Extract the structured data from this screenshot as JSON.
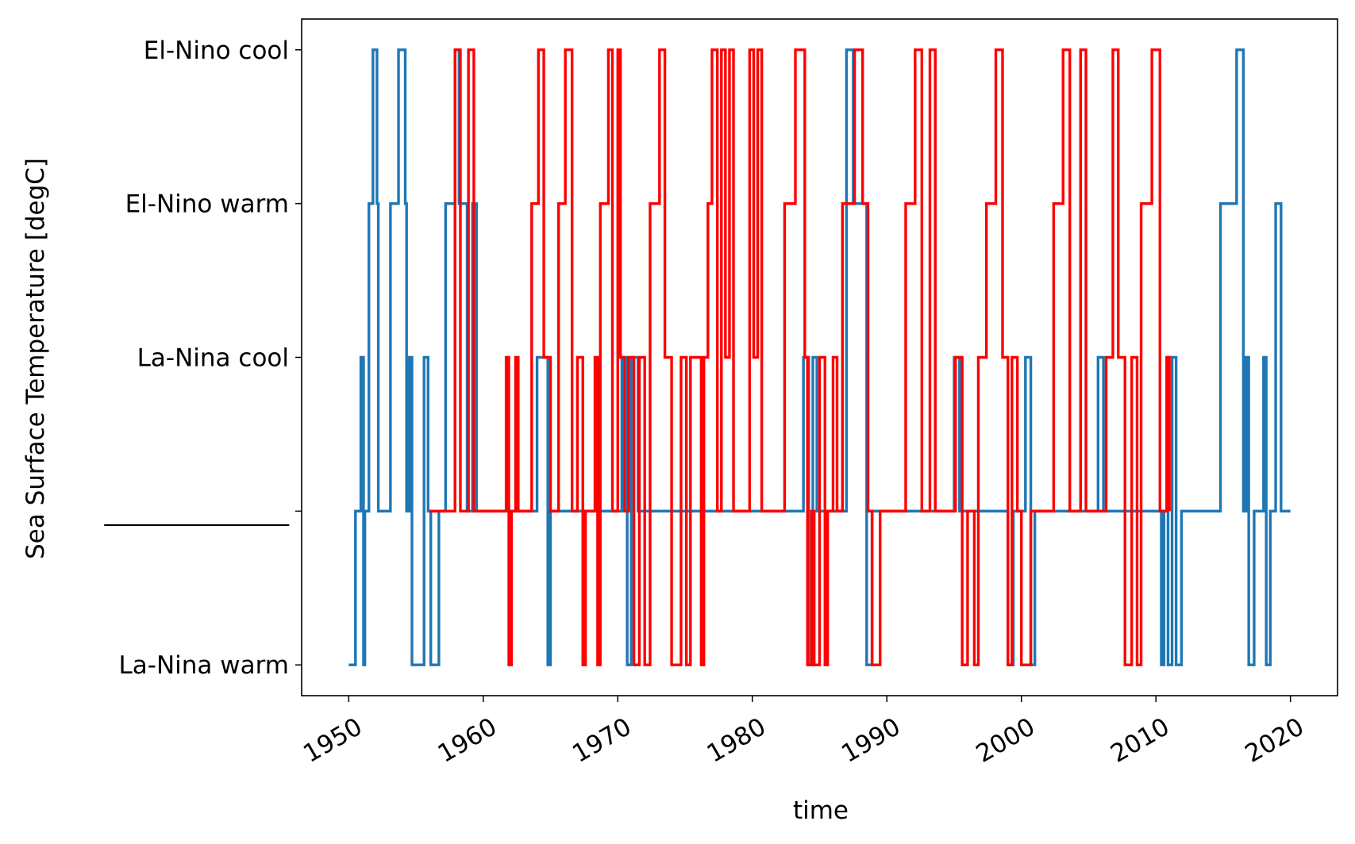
{
  "chart_data": {
    "type": "line",
    "x_label": "time",
    "y_label": "Sea Surface Temperature [degC]",
    "xlim": [
      1946.5,
      2023.5
    ],
    "xticks": [
      1950,
      1960,
      1970,
      1980,
      1990,
      2000,
      2010,
      2020
    ],
    "ylim": [
      -0.2,
      4.2
    ],
    "yticks": [
      {
        "value": 0,
        "label": "La-Nina warm"
      },
      {
        "value": 1,
        "label": "_______________"
      },
      {
        "value": 2,
        "label": "La-Nina cool"
      },
      {
        "value": 3,
        "label": "El-Nino warm"
      },
      {
        "value": 4,
        "label": "El-Nino cool"
      }
    ],
    "series": [
      {
        "color": "#1f77b4",
        "x": [
          1950.0,
          1950.5,
          1950.9,
          1951.1,
          1951.2,
          1951.5,
          1951.8,
          1952.1,
          1952.2,
          1953.1,
          1953.7,
          1954.2,
          1954.3,
          1954.5,
          1954.7,
          1955.6,
          1955.9,
          1956.1,
          1956.7,
          1957.2,
          1957.9,
          1958.2,
          1958.8,
          1959.2,
          1959.5,
          1964.0,
          1964.8,
          1965.0,
          1970.3,
          1970.7,
          1971.0,
          1971.5,
          1983.8,
          1984.2,
          1984.5,
          1984.8,
          1987.0,
          1987.5,
          1988.5,
          1988.9,
          1995.0,
          1995.4,
          1999.0,
          1999.4,
          2000.3,
          2000.7,
          2001.0,
          2005.7,
          2006.1,
          2010.4,
          2010.6,
          2010.9,
          2011.2,
          2011.5,
          2011.9,
          2014.8,
          2016.0,
          2016.5,
          2016.7,
          2016.9,
          2017.3,
          2018.0,
          2018.2,
          2018.5,
          2018.9,
          2019.3,
          2020.0
        ],
        "values": [
          0,
          1,
          2,
          0,
          1,
          3,
          4,
          3,
          1,
          3,
          4,
          3,
          1,
          2,
          0,
          2,
          1,
          0,
          1,
          3,
          4,
          3,
          1,
          3,
          1,
          2,
          0,
          1,
          2,
          0,
          2,
          1,
          2,
          0,
          2,
          1,
          4,
          3,
          0,
          1,
          2,
          1,
          0,
          1,
          2,
          0,
          1,
          2,
          1,
          0,
          1,
          0,
          2,
          0,
          1,
          3,
          4,
          1,
          2,
          0,
          1,
          2,
          0,
          1,
          3,
          1,
          1
        ]
      },
      {
        "color": "#ff0000",
        "x": [
          1956.0,
          1957.9,
          1958.3,
          1958.9,
          1959.3,
          1961.7,
          1961.9,
          1962.1,
          1962.4,
          1962.6,
          1963.6,
          1964.1,
          1964.5,
          1965.0,
          1965.6,
          1966.1,
          1966.6,
          1967.0,
          1967.4,
          1967.6,
          1968.3,
          1968.5,
          1968.7,
          1969.3,
          1969.6,
          1970.0,
          1970.2,
          1970.5,
          1970.8,
          1971.2,
          1971.6,
          1972.0,
          1972.4,
          1973.1,
          1973.5,
          1974.0,
          1974.7,
          1975.1,
          1975.4,
          1976.2,
          1976.4,
          1976.7,
          1977.0,
          1977.4,
          1977.7,
          1978.0,
          1978.3,
          1978.6,
          1979.8,
          1980.1,
          1980.4,
          1980.7,
          1982.4,
          1983.2,
          1983.9,
          1984.1,
          1984.4,
          1984.6,
          1985.0,
          1985.4,
          1985.6,
          1986.0,
          1986.3,
          1986.7,
          1987.6,
          1988.2,
          1988.6,
          1988.9,
          1989.5,
          1991.4,
          1992.1,
          1992.6,
          1993.2,
          1993.6,
          1995.1,
          1995.6,
          1996.0,
          1996.5,
          1996.8,
          1997.4,
          1998.1,
          1998.6,
          1999.0,
          1999.3,
          1999.7,
          2000.0,
          2000.7,
          2002.4,
          2003.1,
          2003.6,
          2004.4,
          2004.8,
          2006.3,
          2006.8,
          2007.2,
          2007.7,
          2008.2,
          2008.6,
          2008.9,
          2009.7,
          2010.3,
          2010.8,
          2011.0
        ],
        "values": [
          1,
          4,
          1,
          4,
          1,
          2,
          0,
          1,
          2,
          1,
          3,
          4,
          2,
          1,
          3,
          4,
          1,
          2,
          0,
          1,
          2,
          0,
          3,
          4,
          1,
          4,
          2,
          1,
          2,
          0,
          2,
          0,
          3,
          4,
          2,
          0,
          2,
          0,
          2,
          0,
          2,
          3,
          4,
          1,
          4,
          2,
          4,
          1,
          4,
          2,
          4,
          1,
          3,
          4,
          2,
          0,
          1,
          0,
          2,
          0,
          1,
          2,
          1,
          3,
          4,
          3,
          1,
          0,
          1,
          3,
          4,
          1,
          4,
          1,
          2,
          0,
          1,
          0,
          2,
          3,
          4,
          2,
          0,
          2,
          1,
          0,
          1,
          3,
          4,
          1,
          4,
          1,
          2,
          4,
          2,
          0,
          2,
          0,
          3,
          4,
          1,
          2,
          1
        ]
      }
    ]
  }
}
